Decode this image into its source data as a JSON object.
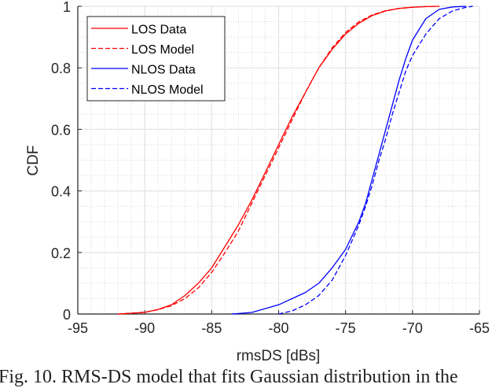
{
  "chart_data": {
    "type": "line",
    "title": "",
    "xlabel": "rmsDS [dBs]",
    "ylabel": "CDF",
    "xlim": [
      -95,
      -65
    ],
    "ylim": [
      0,
      1
    ],
    "xticks": [
      -95,
      -90,
      -85,
      -80,
      -75,
      -70,
      -65
    ],
    "yticks": [
      0,
      0.2,
      0.4,
      0.6,
      0.8,
      1
    ],
    "xtick_labels": [
      "-95",
      "-90",
      "-85",
      "-80",
      "-75",
      "-70",
      "-65"
    ],
    "ytick_labels": [
      "0",
      "0.2",
      "0.4",
      "0.6",
      "0.8",
      "1"
    ],
    "grid": true,
    "minor_grid": true,
    "legend_position": "upper left",
    "series": [
      {
        "name": "LOS Data",
        "color": "#ff0000",
        "dash": "solid",
        "x": [
          -92,
          -90,
          -89,
          -88,
          -87,
          -86,
          -85,
          -84,
          -83,
          -82,
          -81,
          -80,
          -79,
          -78,
          -77,
          -76,
          -75,
          -74,
          -73,
          -72,
          -71,
          -70,
          -69,
          -68
        ],
        "y": [
          0.0,
          0.005,
          0.015,
          0.03,
          0.06,
          0.1,
          0.15,
          0.22,
          0.29,
          0.37,
          0.46,
          0.55,
          0.64,
          0.72,
          0.8,
          0.86,
          0.91,
          0.945,
          0.97,
          0.985,
          0.993,
          0.997,
          0.999,
          1.0
        ]
      },
      {
        "name": "LOS Model",
        "color": "#ff0000",
        "dash": "dashed",
        "x": [
          -92,
          -90,
          -89,
          -88,
          -87,
          -86,
          -85,
          -84,
          -83,
          -82,
          -81,
          -80,
          -79,
          -78,
          -77,
          -76,
          -75,
          -74,
          -73,
          -72,
          -71,
          -70,
          -69,
          -68
        ],
        "y": [
          0.0,
          0.006,
          0.014,
          0.027,
          0.05,
          0.085,
          0.135,
          0.2,
          0.27,
          0.36,
          0.45,
          0.54,
          0.63,
          0.72,
          0.8,
          0.865,
          0.915,
          0.95,
          0.972,
          0.986,
          0.993,
          0.997,
          0.999,
          1.0
        ]
      },
      {
        "name": "NLOS Data",
        "color": "#0000ff",
        "dash": "solid",
        "x": [
          -83.5,
          -82,
          -80,
          -78,
          -77,
          -76,
          -75,
          -74,
          -73.5,
          -73,
          -72.5,
          -72,
          -71.5,
          -71,
          -70.5,
          -70,
          -69,
          -68,
          -67,
          -66
        ],
        "y": [
          0.0,
          0.005,
          0.03,
          0.07,
          0.1,
          0.15,
          0.21,
          0.3,
          0.36,
          0.44,
          0.52,
          0.6,
          0.68,
          0.76,
          0.83,
          0.89,
          0.96,
          0.99,
          0.998,
          1.0
        ]
      },
      {
        "name": "NLOS Model",
        "color": "#0000ff",
        "dash": "dashed",
        "x": [
          -80,
          -79,
          -78,
          -77,
          -76,
          -75,
          -74,
          -73.5,
          -73,
          -72.5,
          -72,
          -71.5,
          -71,
          -70.5,
          -70,
          -69,
          -68,
          -67,
          -66,
          -65.5
        ],
        "y": [
          0.0,
          0.01,
          0.03,
          0.06,
          0.11,
          0.19,
          0.29,
          0.35,
          0.42,
          0.5,
          0.57,
          0.65,
          0.72,
          0.79,
          0.84,
          0.91,
          0.96,
          0.985,
          0.997,
          1.0
        ]
      }
    ]
  },
  "caption": "Fig. 10. RMS-DS model that fits Gaussian distribution in the"
}
